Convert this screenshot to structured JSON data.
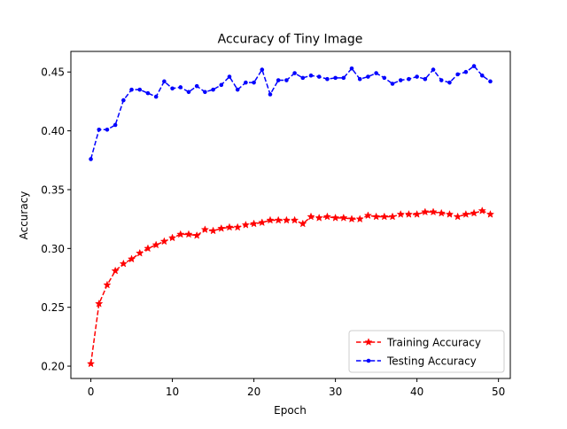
{
  "chart_data": {
    "type": "line",
    "title": "Accuracy of Tiny Image",
    "xlabel": "Epoch",
    "ylabel": "Accuracy",
    "xlim": [
      -2.45,
      51.45
    ],
    "ylim": [
      0.1895,
      0.4675
    ],
    "xticks": [
      0,
      10,
      20,
      30,
      40,
      50
    ],
    "xtick_labels": [
      "0",
      "10",
      "20",
      "30",
      "40",
      "50"
    ],
    "yticks": [
      0.2,
      0.25,
      0.3,
      0.35,
      0.4,
      0.45
    ],
    "ytick_labels": [
      "0.20",
      "0.25",
      "0.30",
      "0.35",
      "0.40",
      "0.45"
    ],
    "grid": false,
    "legend_position": "lower-right",
    "x": [
      0,
      1,
      2,
      3,
      4,
      5,
      6,
      7,
      8,
      9,
      10,
      11,
      12,
      13,
      14,
      15,
      16,
      17,
      18,
      19,
      20,
      21,
      22,
      23,
      24,
      25,
      26,
      27,
      28,
      29,
      30,
      31,
      32,
      33,
      34,
      35,
      36,
      37,
      38,
      39,
      40,
      41,
      42,
      43,
      44,
      45,
      46,
      47,
      48,
      49
    ],
    "series": [
      {
        "name": "Training Accuracy",
        "color": "#ff0000",
        "marker": "star",
        "linestyle": "dashed",
        "values": [
          0.202,
          0.253,
          0.269,
          0.281,
          0.287,
          0.291,
          0.296,
          0.3,
          0.303,
          0.306,
          0.309,
          0.312,
          0.312,
          0.311,
          0.316,
          0.315,
          0.317,
          0.318,
          0.318,
          0.32,
          0.321,
          0.322,
          0.324,
          0.324,
          0.324,
          0.324,
          0.321,
          0.327,
          0.326,
          0.327,
          0.326,
          0.326,
          0.325,
          0.325,
          0.328,
          0.327,
          0.327,
          0.327,
          0.329,
          0.329,
          0.329,
          0.331,
          0.331,
          0.33,
          0.329,
          0.327,
          0.329,
          0.33,
          0.332,
          0.329
        ]
      },
      {
        "name": "Testing Accuracy",
        "color": "#0000ff",
        "marker": "circle",
        "linestyle": "dashed",
        "values": [
          0.376,
          0.401,
          0.401,
          0.405,
          0.426,
          0.435,
          0.435,
          0.432,
          0.429,
          0.442,
          0.436,
          0.437,
          0.433,
          0.438,
          0.433,
          0.435,
          0.439,
          0.446,
          0.435,
          0.441,
          0.441,
          0.452,
          0.431,
          0.443,
          0.443,
          0.449,
          0.445,
          0.447,
          0.446,
          0.444,
          0.445,
          0.445,
          0.453,
          0.444,
          0.446,
          0.449,
          0.445,
          0.44,
          0.443,
          0.444,
          0.446,
          0.444,
          0.452,
          0.443,
          0.441,
          0.448,
          0.45,
          0.455,
          0.447,
          0.442
        ]
      }
    ]
  }
}
